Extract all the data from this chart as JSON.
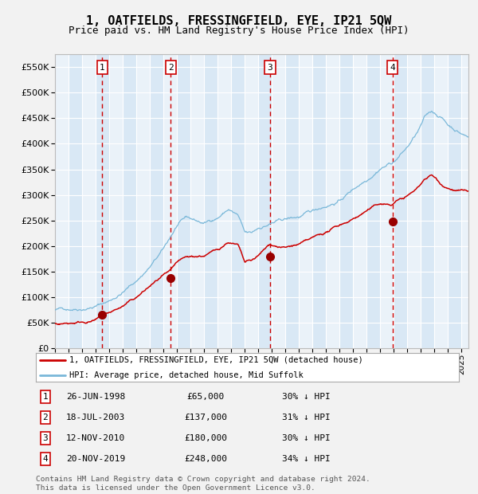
{
  "title": "1, OATFIELDS, FRESSINGFIELD, EYE, IP21 5QW",
  "subtitle": "Price paid vs. HM Land Registry's House Price Index (HPI)",
  "title_fontsize": 11,
  "subtitle_fontsize": 9,
  "hpi_color": "#7ab8d9",
  "price_color": "#cc0000",
  "sale_marker_color": "#990000",
  "vline_color": "#cc0000",
  "bg_color": "#d9e8f5",
  "grid_color": "#ffffff",
  "fig_bg": "#f2f2f2",
  "ylim": [
    0,
    575000
  ],
  "yticks": [
    0,
    50000,
    100000,
    150000,
    200000,
    250000,
    300000,
    350000,
    400000,
    450000,
    500000,
    550000
  ],
  "sales": [
    {
      "date_num": 1998.49,
      "price": 65000,
      "label": "1"
    },
    {
      "date_num": 2003.54,
      "price": 137000,
      "label": "2"
    },
    {
      "date_num": 2010.87,
      "price": 180000,
      "label": "3"
    },
    {
      "date_num": 2019.89,
      "price": 248000,
      "label": "4"
    }
  ],
  "legend_line1": "1, OATFIELDS, FRESSINGFIELD, EYE, IP21 5QW (detached house)",
  "legend_line2": "HPI: Average price, detached house, Mid Suffolk",
  "table_data": [
    [
      "1",
      "26-JUN-1998",
      "£65,000",
      "30% ↓ HPI"
    ],
    [
      "2",
      "18-JUL-2003",
      "£137,000",
      "31% ↓ HPI"
    ],
    [
      "3",
      "12-NOV-2010",
      "£180,000",
      "30% ↓ HPI"
    ],
    [
      "4",
      "20-NOV-2019",
      "£248,000",
      "34% ↓ HPI"
    ]
  ],
  "footer": "Contains HM Land Registry data © Crown copyright and database right 2024.\nThis data is licensed under the Open Government Licence v3.0.",
  "xmin": 1995.0,
  "xmax": 2025.5
}
